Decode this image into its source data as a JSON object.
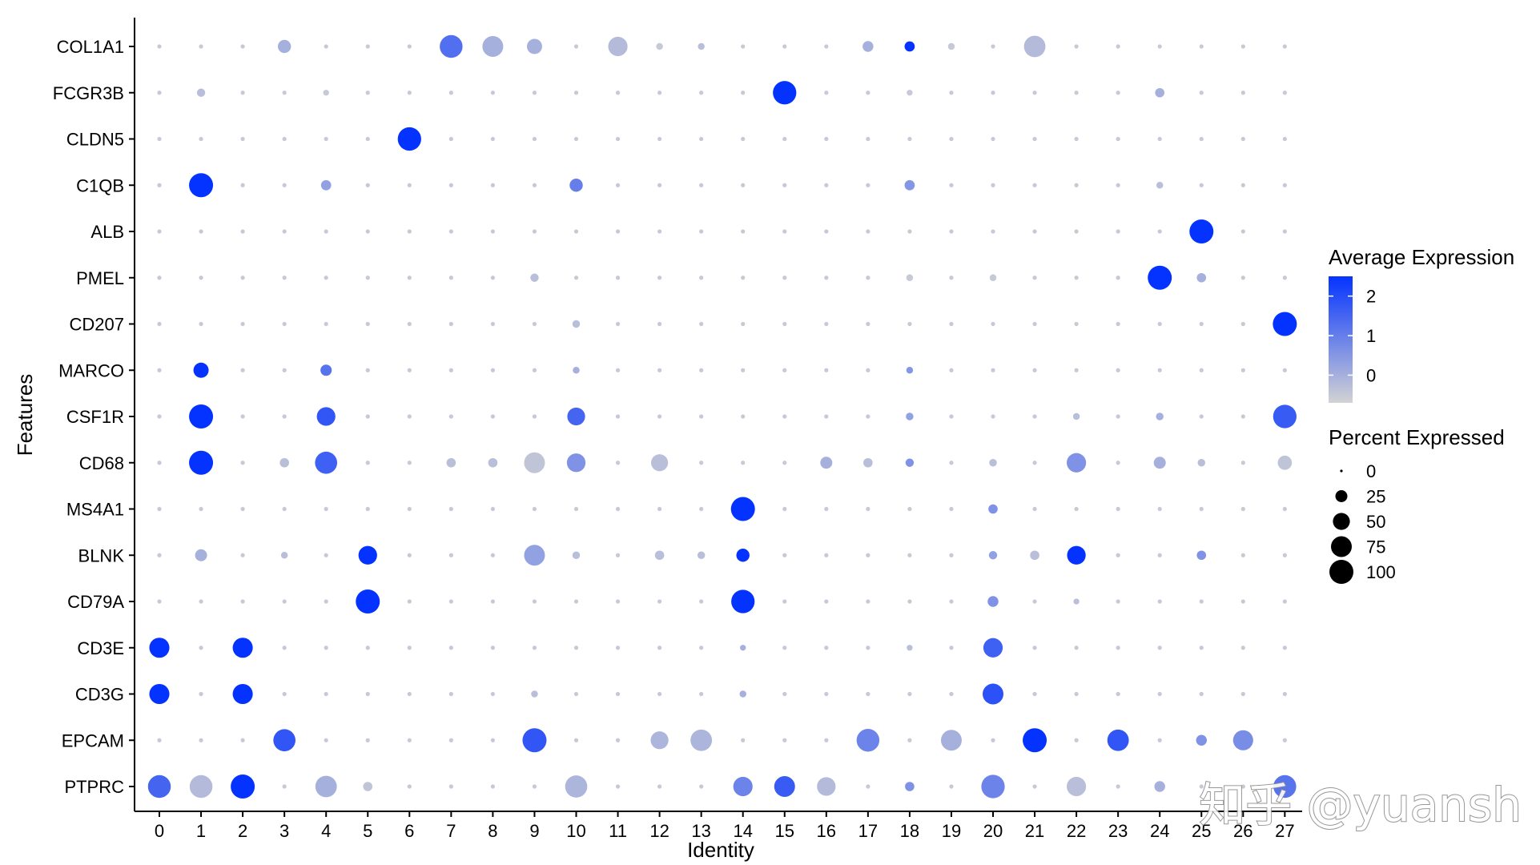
{
  "chart_data": {
    "type": "dotplot",
    "xlabel": "Identity",
    "ylabel": "Features",
    "categories": [
      "0",
      "1",
      "2",
      "3",
      "4",
      "5",
      "6",
      "7",
      "8",
      "9",
      "10",
      "11",
      "12",
      "13",
      "14",
      "15",
      "16",
      "17",
      "18",
      "19",
      "20",
      "21",
      "22",
      "23",
      "24",
      "25",
      "26",
      "27"
    ],
    "features": [
      "COL1A1",
      "FCGR3B",
      "CLDN5",
      "C1QB",
      "ALB",
      "PMEL",
      "CD207",
      "MARCO",
      "CSF1R",
      "CD68",
      "MS4A1",
      "BLNK",
      "CD79A",
      "CD3E",
      "CD3G",
      "EPCAM",
      "PTPRC"
    ],
    "default_point": {
      "percent": 3,
      "avg": -0.5
    },
    "points": [
      {
        "feature": "COL1A1",
        "cluster": "3",
        "percent": 30,
        "avg": 0.0
      },
      {
        "feature": "COL1A1",
        "cluster": "7",
        "percent": 90,
        "avg": 1.3
      },
      {
        "feature": "COL1A1",
        "cluster": "8",
        "percent": 75,
        "avg": 0.0
      },
      {
        "feature": "COL1A1",
        "cluster": "9",
        "percent": 40,
        "avg": 0.0
      },
      {
        "feature": "COL1A1",
        "cluster": "11",
        "percent": 65,
        "avg": -0.2
      },
      {
        "feature": "COL1A1",
        "cluster": "12",
        "percent": 8,
        "avg": -0.5
      },
      {
        "feature": "COL1A1",
        "cluster": "13",
        "percent": 8,
        "avg": -0.3
      },
      {
        "feature": "COL1A1",
        "cluster": "17",
        "percent": 20,
        "avg": 0.0
      },
      {
        "feature": "COL1A1",
        "cluster": "18",
        "percent": 18,
        "avg": 2.5
      },
      {
        "feature": "COL1A1",
        "cluster": "19",
        "percent": 8,
        "avg": -0.5
      },
      {
        "feature": "COL1A1",
        "cluster": "21",
        "percent": 80,
        "avg": -0.2
      },
      {
        "feature": "FCGR3B",
        "cluster": "1",
        "percent": 12,
        "avg": -0.3
      },
      {
        "feature": "FCGR3B",
        "cluster": "4",
        "percent": 6,
        "avg": -0.5
      },
      {
        "feature": "FCGR3B",
        "cluster": "15",
        "percent": 95,
        "avg": 2.5
      },
      {
        "feature": "FCGR3B",
        "cluster": "18",
        "percent": 6,
        "avg": -0.5
      },
      {
        "feature": "FCGR3B",
        "cluster": "24",
        "percent": 15,
        "avg": 0.0
      },
      {
        "feature": "CLDN5",
        "cluster": "6",
        "percent": 95,
        "avg": 2.5
      },
      {
        "feature": "C1QB",
        "cluster": "1",
        "percent": 100,
        "avg": 2.5
      },
      {
        "feature": "C1QB",
        "cluster": "4",
        "percent": 18,
        "avg": 0.3
      },
      {
        "feature": "C1QB",
        "cluster": "10",
        "percent": 30,
        "avg": 1.0
      },
      {
        "feature": "C1QB",
        "cluster": "18",
        "percent": 18,
        "avg": 0.5
      },
      {
        "feature": "C1QB",
        "cluster": "24",
        "percent": 8,
        "avg": -0.3
      },
      {
        "feature": "ALB",
        "cluster": "25",
        "percent": 100,
        "avg": 2.5
      },
      {
        "feature": "PMEL",
        "cluster": "9",
        "percent": 12,
        "avg": -0.3
      },
      {
        "feature": "PMEL",
        "cluster": "18",
        "percent": 8,
        "avg": -0.5
      },
      {
        "feature": "PMEL",
        "cluster": "20",
        "percent": 8,
        "avg": -0.5
      },
      {
        "feature": "PMEL",
        "cluster": "24",
        "percent": 100,
        "avg": 2.5
      },
      {
        "feature": "PMEL",
        "cluster": "25",
        "percent": 15,
        "avg": 0.0
      },
      {
        "feature": "CD207",
        "cluster": "10",
        "percent": 10,
        "avg": -0.3
      },
      {
        "feature": "CD207",
        "cluster": "27",
        "percent": 100,
        "avg": 2.5
      },
      {
        "feature": "MARCO",
        "cluster": "1",
        "percent": 40,
        "avg": 2.5
      },
      {
        "feature": "MARCO",
        "cluster": "4",
        "percent": 22,
        "avg": 1.2
      },
      {
        "feature": "MARCO",
        "cluster": "10",
        "percent": 8,
        "avg": 0.0
      },
      {
        "feature": "MARCO",
        "cluster": "18",
        "percent": 8,
        "avg": 0.5
      },
      {
        "feature": "CSF1R",
        "cluster": "1",
        "percent": 100,
        "avg": 2.5
      },
      {
        "feature": "CSF1R",
        "cluster": "4",
        "percent": 60,
        "avg": 1.8
      },
      {
        "feature": "CSF1R",
        "cluster": "10",
        "percent": 55,
        "avg": 1.5
      },
      {
        "feature": "CSF1R",
        "cluster": "18",
        "percent": 10,
        "avg": 0.3
      },
      {
        "feature": "CSF1R",
        "cluster": "22",
        "percent": 8,
        "avg": -0.3
      },
      {
        "feature": "CSF1R",
        "cluster": "24",
        "percent": 10,
        "avg": 0.0
      },
      {
        "feature": "CSF1R",
        "cluster": "27",
        "percent": 95,
        "avg": 1.7
      },
      {
        "feature": "CD68",
        "cluster": "1",
        "percent": 100,
        "avg": 2.5
      },
      {
        "feature": "CD68",
        "cluster": "3",
        "percent": 15,
        "avg": -0.3
      },
      {
        "feature": "CD68",
        "cluster": "4",
        "percent": 85,
        "avg": 1.6
      },
      {
        "feature": "CD68",
        "cluster": "7",
        "percent": 15,
        "avg": -0.3
      },
      {
        "feature": "CD68",
        "cluster": "8",
        "percent": 15,
        "avg": -0.3
      },
      {
        "feature": "CD68",
        "cluster": "9",
        "percent": 75,
        "avg": -0.4
      },
      {
        "feature": "CD68",
        "cluster": "10",
        "percent": 60,
        "avg": 0.6
      },
      {
        "feature": "CD68",
        "cluster": "12",
        "percent": 50,
        "avg": -0.3
      },
      {
        "feature": "CD68",
        "cluster": "16",
        "percent": 25,
        "avg": 0.0
      },
      {
        "feature": "CD68",
        "cluster": "17",
        "percent": 15,
        "avg": -0.3
      },
      {
        "feature": "CD68",
        "cluster": "18",
        "percent": 12,
        "avg": 0.6
      },
      {
        "feature": "CD68",
        "cluster": "20",
        "percent": 10,
        "avg": -0.3
      },
      {
        "feature": "CD68",
        "cluster": "22",
        "percent": 65,
        "avg": 0.6
      },
      {
        "feature": "CD68",
        "cluster": "24",
        "percent": 25,
        "avg": 0.0
      },
      {
        "feature": "CD68",
        "cluster": "25",
        "percent": 10,
        "avg": -0.3
      },
      {
        "feature": "CD68",
        "cluster": "27",
        "percent": 35,
        "avg": -0.4
      },
      {
        "feature": "MS4A1",
        "cluster": "14",
        "percent": 100,
        "avg": 2.5
      },
      {
        "feature": "MS4A1",
        "cluster": "20",
        "percent": 15,
        "avg": 0.6
      },
      {
        "feature": "BLNK",
        "cluster": "1",
        "percent": 25,
        "avg": 0.0
      },
      {
        "feature": "BLNK",
        "cluster": "3",
        "percent": 8,
        "avg": -0.3
      },
      {
        "feature": "BLNK",
        "cluster": "5",
        "percent": 60,
        "avg": 2.5
      },
      {
        "feature": "BLNK",
        "cluster": "9",
        "percent": 75,
        "avg": 0.3
      },
      {
        "feature": "BLNK",
        "cluster": "10",
        "percent": 10,
        "avg": -0.3
      },
      {
        "feature": "BLNK",
        "cluster": "12",
        "percent": 15,
        "avg": -0.3
      },
      {
        "feature": "BLNK",
        "cluster": "13",
        "percent": 10,
        "avg": -0.3
      },
      {
        "feature": "BLNK",
        "cluster": "14",
        "percent": 30,
        "avg": 2.5
      },
      {
        "feature": "BLNK",
        "cluster": "20",
        "percent": 12,
        "avg": 0.3
      },
      {
        "feature": "BLNK",
        "cluster": "21",
        "percent": 15,
        "avg": -0.3
      },
      {
        "feature": "BLNK",
        "cluster": "22",
        "percent": 60,
        "avg": 2.5
      },
      {
        "feature": "BLNK",
        "cluster": "25",
        "percent": 15,
        "avg": 0.6
      },
      {
        "feature": "CD79A",
        "cluster": "5",
        "percent": 100,
        "avg": 2.5
      },
      {
        "feature": "CD79A",
        "cluster": "14",
        "percent": 95,
        "avg": 2.5
      },
      {
        "feature": "CD79A",
        "cluster": "20",
        "percent": 20,
        "avg": 0.6
      },
      {
        "feature": "CD79A",
        "cluster": "22",
        "percent": 6,
        "avg": -0.3
      },
      {
        "feature": "CD3E",
        "cluster": "0",
        "percent": 70,
        "avg": 2.5
      },
      {
        "feature": "CD3E",
        "cluster": "2",
        "percent": 70,
        "avg": 2.5
      },
      {
        "feature": "CD3E",
        "cluster": "14",
        "percent": 6,
        "avg": 0.0
      },
      {
        "feature": "CD3E",
        "cluster": "18",
        "percent": 6,
        "avg": -0.3
      },
      {
        "feature": "CD3E",
        "cluster": "20",
        "percent": 65,
        "avg": 1.6
      },
      {
        "feature": "CD3G",
        "cluster": "0",
        "percent": 70,
        "avg": 2.5
      },
      {
        "feature": "CD3G",
        "cluster": "2",
        "percent": 70,
        "avg": 2.5
      },
      {
        "feature": "CD3G",
        "cluster": "9",
        "percent": 8,
        "avg": -0.3
      },
      {
        "feature": "CD3G",
        "cluster": "14",
        "percent": 8,
        "avg": 0.0
      },
      {
        "feature": "CD3G",
        "cluster": "20",
        "percent": 75,
        "avg": 1.9
      },
      {
        "feature": "EPCAM",
        "cluster": "3",
        "percent": 85,
        "avg": 1.8
      },
      {
        "feature": "EPCAM",
        "cluster": "9",
        "percent": 100,
        "avg": 1.8
      },
      {
        "feature": "EPCAM",
        "cluster": "12",
        "percent": 55,
        "avg": -0.1
      },
      {
        "feature": "EPCAM",
        "cluster": "13",
        "percent": 80,
        "avg": -0.1
      },
      {
        "feature": "EPCAM",
        "cluster": "17",
        "percent": 90,
        "avg": 0.9
      },
      {
        "feature": "EPCAM",
        "cluster": "19",
        "percent": 75,
        "avg": 0.0
      },
      {
        "feature": "EPCAM",
        "cluster": "21",
        "percent": 100,
        "avg": 2.5
      },
      {
        "feature": "EPCAM",
        "cluster": "23",
        "percent": 80,
        "avg": 1.8
      },
      {
        "feature": "EPCAM",
        "cluster": "25",
        "percent": 20,
        "avg": 0.6
      },
      {
        "feature": "EPCAM",
        "cluster": "26",
        "percent": 70,
        "avg": 0.7
      },
      {
        "feature": "PTPRC",
        "cluster": "0",
        "percent": 90,
        "avg": 1.5
      },
      {
        "feature": "PTPRC",
        "cluster": "1",
        "percent": 90,
        "avg": -0.2
      },
      {
        "feature": "PTPRC",
        "cluster": "2",
        "percent": 100,
        "avg": 2.5
      },
      {
        "feature": "PTPRC",
        "cluster": "4",
        "percent": 80,
        "avg": 0.0
      },
      {
        "feature": "PTPRC",
        "cluster": "5",
        "percent": 15,
        "avg": -0.4
      },
      {
        "feature": "PTPRC",
        "cluster": "10",
        "percent": 85,
        "avg": -0.1
      },
      {
        "feature": "PTPRC",
        "cluster": "14",
        "percent": 65,
        "avg": 0.9
      },
      {
        "feature": "PTPRC",
        "cluster": "15",
        "percent": 75,
        "avg": 1.7
      },
      {
        "feature": "PTPRC",
        "cluster": "16",
        "percent": 60,
        "avg": -0.2
      },
      {
        "feature": "PTPRC",
        "cluster": "18",
        "percent": 15,
        "avg": 0.6
      },
      {
        "feature": "PTPRC",
        "cluster": "20",
        "percent": 95,
        "avg": 0.9
      },
      {
        "feature": "PTPRC",
        "cluster": "22",
        "percent": 65,
        "avg": -0.3
      },
      {
        "feature": "PTPRC",
        "cluster": "24",
        "percent": 20,
        "avg": 0.0
      },
      {
        "feature": "PTPRC",
        "cluster": "27",
        "percent": 90,
        "avg": 1.2
      }
    ],
    "color_scale": {
      "low": "#d3d3d3",
      "high": "#0433ff",
      "min": -0.7,
      "max": 2.5
    },
    "legend_color": {
      "title": "Average Expression",
      "ticks": [
        2,
        1,
        0
      ]
    },
    "legend_size": {
      "title": "Percent Expressed",
      "ticks": [
        0,
        25,
        50,
        75,
        100
      ]
    },
    "legend_position": "right",
    "grid": false
  },
  "watermark": {
    "text": "知乎 @yuansh"
  }
}
